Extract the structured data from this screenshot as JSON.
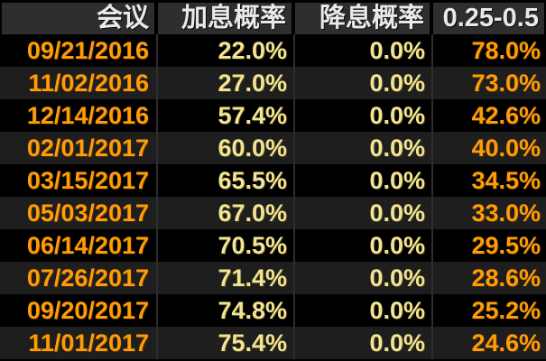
{
  "colors": {
    "orange": "#ff9c06",
    "yellow": "#f2e493",
    "header_bg": "#2e2e2e",
    "header_text": "#e9e9e7",
    "row_alt": "#1e1e1e",
    "divider": "#2d2d2d"
  },
  "table": {
    "columns": [
      {
        "key": "meeting",
        "label": "会议"
      },
      {
        "key": "hike",
        "label": "加息概率"
      },
      {
        "key": "cut",
        "label": "降息概率"
      },
      {
        "key": "range",
        "label": "0.25-0.5"
      }
    ],
    "rows": [
      {
        "meeting": "09/21/2016",
        "hike": "22.0%",
        "cut": "0.0%",
        "range": "78.0%"
      },
      {
        "meeting": "11/02/2016",
        "hike": "27.0%",
        "cut": "0.0%",
        "range": "73.0%"
      },
      {
        "meeting": "12/14/2016",
        "hike": "57.4%",
        "cut": "0.0%",
        "range": "42.6%"
      },
      {
        "meeting": "02/01/2017",
        "hike": "60.0%",
        "cut": "0.0%",
        "range": "40.0%"
      },
      {
        "meeting": "03/15/2017",
        "hike": "65.5%",
        "cut": "0.0%",
        "range": "34.5%"
      },
      {
        "meeting": "05/03/2017",
        "hike": "67.0%",
        "cut": "0.0%",
        "range": "33.0%"
      },
      {
        "meeting": "06/14/2017",
        "hike": "70.5%",
        "cut": "0.0%",
        "range": "29.5%"
      },
      {
        "meeting": "07/26/2017",
        "hike": "71.4%",
        "cut": "0.0%",
        "range": "28.6%"
      },
      {
        "meeting": "09/20/2017",
        "hike": "74.8%",
        "cut": "0.0%",
        "range": "25.2%"
      },
      {
        "meeting": "11/01/2017",
        "hike": "75.4%",
        "cut": "0.0%",
        "range": "24.6%"
      }
    ]
  }
}
